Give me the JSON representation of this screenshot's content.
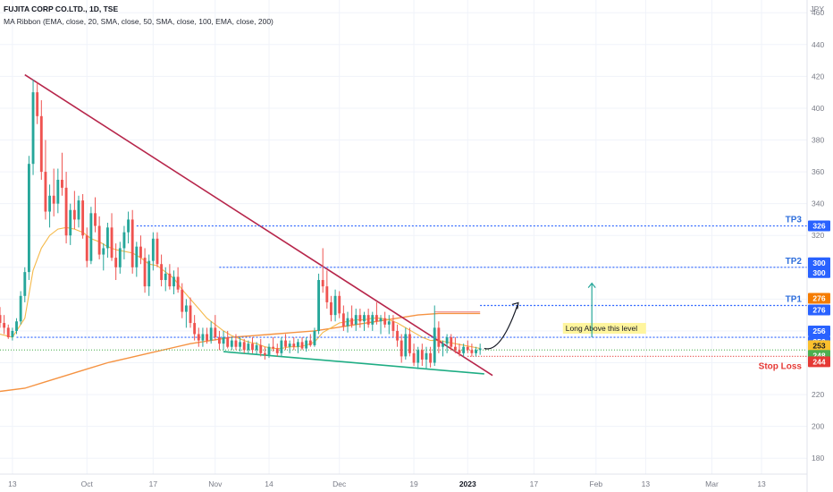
{
  "header": {
    "title": "FUJITA CORP CO.LTD., 1D, TSE",
    "indicator": "MA Ribbon (EMA, close, 20, SMA, close, 50, SMA, close, 100, EMA, close, 200)",
    "currency": "JPY"
  },
  "chart_data": {
    "type": "candlestick",
    "y_axis": {
      "ticks": [
        180,
        200,
        220,
        240,
        260,
        280,
        300,
        320,
        340,
        360,
        380,
        400,
        420,
        440,
        460
      ],
      "range": [
        170,
        468
      ]
    },
    "x_axis": {
      "ticks": [
        {
          "label": "13",
          "day": -18
        },
        {
          "label": "Oct",
          "day": 0
        },
        {
          "label": "17",
          "day": 16
        },
        {
          "label": "Nov",
          "day": 31
        },
        {
          "label": "14",
          "day": 44
        },
        {
          "label": "Dec",
          "day": 61
        },
        {
          "label": "19",
          "day": 79
        },
        {
          "label": "2023",
          "day": 92
        },
        {
          "label": "17",
          "day": 108
        },
        {
          "label": "Feb",
          "day": 123
        },
        {
          "label": "13",
          "day": 135
        },
        {
          "label": "Mar",
          "day": 151
        },
        {
          "label": "13",
          "day": 163
        }
      ],
      "range": [
        -21,
        174
      ]
    },
    "candles": [
      [
        -21,
        270,
        275,
        262,
        265
      ],
      [
        -20,
        265,
        270,
        258,
        262
      ],
      [
        -19,
        262,
        264,
        255,
        256
      ],
      [
        -18,
        256,
        262,
        254,
        260
      ],
      [
        -17,
        260,
        268,
        258,
        266
      ],
      [
        -16,
        266,
        285,
        264,
        282
      ],
      [
        -15,
        282,
        300,
        278,
        297
      ],
      [
        -14,
        297,
        370,
        292,
        365
      ],
      [
        -13,
        365,
        418,
        358,
        410
      ],
      [
        -12,
        410,
        416,
        390,
        395
      ],
      [
        -11,
        395,
        405,
        355,
        360
      ],
      [
        -10,
        360,
        380,
        330,
        335
      ],
      [
        -9,
        335,
        352,
        325,
        345
      ],
      [
        -8,
        345,
        362,
        332,
        340
      ],
      [
        -7,
        340,
        362,
        334,
        355
      ],
      [
        -6,
        355,
        372,
        345,
        350
      ],
      [
        -5,
        350,
        360,
        315,
        320
      ],
      [
        -4,
        320,
        340,
        314,
        336
      ],
      [
        -3,
        336,
        348,
        324,
        330
      ],
      [
        -2,
        330,
        345,
        325,
        342
      ],
      [
        -1,
        342,
        346,
        318,
        320
      ],
      [
        0,
        320,
        325,
        300,
        304
      ],
      [
        1,
        304,
        338,
        302,
        334
      ],
      [
        2,
        334,
        344,
        322,
        326
      ],
      [
        3,
        326,
        332,
        305,
        308
      ],
      [
        4,
        308,
        315,
        298,
        312
      ],
      [
        5,
        312,
        328,
        306,
        325
      ],
      [
        6,
        325,
        334,
        304,
        306
      ],
      [
        7,
        306,
        315,
        292,
        300
      ],
      [
        8,
        300,
        316,
        296,
        312
      ],
      [
        9,
        312,
        326,
        305,
        322
      ],
      [
        10,
        322,
        335,
        315,
        330
      ],
      [
        11,
        330,
        336,
        296,
        300
      ],
      [
        12,
        300,
        316,
        294,
        313
      ],
      [
        13,
        313,
        320,
        302,
        306
      ],
      [
        14,
        306,
        312,
        284,
        288
      ],
      [
        15,
        288,
        308,
        282,
        304
      ],
      [
        16,
        304,
        322,
        298,
        318
      ],
      [
        17,
        318,
        322,
        300,
        302
      ],
      [
        18,
        302,
        308,
        288,
        292
      ],
      [
        19,
        292,
        300,
        285,
        296
      ],
      [
        20,
        296,
        302,
        286,
        288
      ],
      [
        21,
        288,
        298,
        283,
        294
      ],
      [
        22,
        294,
        300,
        284,
        286
      ],
      [
        23,
        286,
        290,
        268,
        272
      ],
      [
        24,
        272,
        280,
        262,
        276
      ],
      [
        25,
        276,
        281,
        262,
        265
      ],
      [
        26,
        265,
        270,
        254,
        258
      ],
      [
        27,
        258,
        262,
        250,
        254
      ],
      [
        28,
        254,
        262,
        250,
        258
      ],
      [
        29,
        258,
        262,
        252,
        254
      ],
      [
        30,
        254,
        266,
        252,
        262
      ],
      [
        31,
        262,
        270,
        254,
        256
      ],
      [
        32,
        256,
        260,
        248,
        252
      ],
      [
        33,
        252,
        260,
        248,
        256
      ],
      [
        34,
        256,
        260,
        249,
        250
      ],
      [
        35,
        250,
        256,
        248,
        254
      ],
      [
        36,
        254,
        258,
        248,
        250
      ],
      [
        37,
        250,
        256,
        247,
        253
      ],
      [
        38,
        253,
        255,
        246,
        248
      ],
      [
        39,
        248,
        254,
        246,
        252
      ],
      [
        40,
        252,
        256,
        246,
        248
      ],
      [
        41,
        248,
        253,
        245,
        251
      ],
      [
        42,
        251,
        255,
        244,
        246
      ],
      [
        43,
        246,
        250,
        242,
        245
      ],
      [
        44,
        245,
        252,
        243,
        250
      ],
      [
        45,
        250,
        256,
        247,
        249
      ],
      [
        46,
        249,
        252,
        244,
        246
      ],
      [
        47,
        246,
        256,
        244,
        254
      ],
      [
        48,
        254,
        258,
        248,
        250
      ],
      [
        49,
        250,
        254,
        246,
        252
      ],
      [
        50,
        252,
        256,
        248,
        250
      ],
      [
        51,
        250,
        255,
        246,
        253
      ],
      [
        52,
        253,
        256,
        248,
        249
      ],
      [
        53,
        249,
        256,
        247,
        254
      ],
      [
        54,
        254,
        258,
        250,
        251
      ],
      [
        55,
        251,
        262,
        250,
        260
      ],
      [
        56,
        260,
        296,
        258,
        292
      ],
      [
        57,
        292,
        312,
        284,
        288
      ],
      [
        58,
        288,
        298,
        274,
        278
      ],
      [
        59,
        278,
        282,
        266,
        270
      ],
      [
        60,
        270,
        286,
        266,
        282
      ],
      [
        61,
        282,
        285,
        268,
        271
      ],
      [
        62,
        271,
        276,
        260,
        263
      ],
      [
        63,
        263,
        272,
        259,
        268
      ],
      [
        64,
        268,
        276,
        262,
        264
      ],
      [
        65,
        264,
        274,
        260,
        270
      ],
      [
        66,
        270,
        274,
        262,
        266
      ],
      [
        67,
        266,
        272,
        260,
        270
      ],
      [
        68,
        270,
        274,
        262,
        264
      ],
      [
        69,
        264,
        272,
        260,
        270
      ],
      [
        70,
        270,
        278,
        264,
        266
      ],
      [
        71,
        266,
        270,
        258,
        268
      ],
      [
        72,
        268,
        272,
        262,
        264
      ],
      [
        73,
        264,
        270,
        258,
        266
      ],
      [
        74,
        266,
        270,
        256,
        260
      ],
      [
        75,
        260,
        264,
        250,
        254
      ],
      [
        76,
        254,
        258,
        240,
        244
      ],
      [
        77,
        244,
        262,
        242,
        258
      ],
      [
        78,
        258,
        262,
        244,
        246
      ],
      [
        79,
        246,
        252,
        238,
        240
      ],
      [
        80,
        240,
        250,
        236,
        248
      ],
      [
        81,
        248,
        252,
        238,
        242
      ],
      [
        82,
        242,
        250,
        236,
        246
      ],
      [
        83,
        246,
        250,
        237,
        240
      ],
      [
        84,
        240,
        276,
        238,
        262
      ],
      [
        85,
        262,
        266,
        246,
        250
      ],
      [
        86,
        250,
        254,
        244,
        252
      ],
      [
        87,
        252,
        258,
        246,
        256
      ],
      [
        88,
        256,
        258,
        248,
        250
      ],
      [
        89,
        250,
        256,
        246,
        248
      ],
      [
        90,
        248,
        252,
        244,
        246
      ],
      [
        91,
        246,
        252,
        244,
        250
      ],
      [
        92,
        250,
        254,
        246,
        248
      ],
      [
        93,
        248,
        252,
        244,
        246
      ],
      [
        94,
        246,
        250,
        244,
        248
      ],
      [
        95,
        248,
        252,
        245,
        249
      ]
    ],
    "ema20": [
      [
        -21,
        258
      ],
      [
        -18,
        256
      ],
      [
        -15,
        268
      ],
      [
        -13,
        298
      ],
      [
        -11,
        312
      ],
      [
        -9,
        320
      ],
      [
        -7,
        324
      ],
      [
        -5,
        325
      ],
      [
        -3,
        324
      ],
      [
        -1,
        322
      ],
      [
        1,
        318
      ],
      [
        3,
        316
      ],
      [
        5,
        313
      ],
      [
        7,
        311
      ],
      [
        9,
        310
      ],
      [
        11,
        309
      ],
      [
        13,
        306
      ],
      [
        15,
        302
      ],
      [
        17,
        301
      ],
      [
        19,
        297
      ],
      [
        21,
        293
      ],
      [
        23,
        286
      ],
      [
        25,
        280
      ],
      [
        27,
        274
      ],
      [
        29,
        268
      ],
      [
        31,
        264
      ],
      [
        33,
        260
      ],
      [
        35,
        257
      ],
      [
        37,
        255
      ],
      [
        39,
        253
      ],
      [
        41,
        252
      ],
      [
        43,
        250
      ],
      [
        45,
        249
      ],
      [
        47,
        249
      ],
      [
        49,
        250
      ],
      [
        51,
        250
      ],
      [
        53,
        251
      ],
      [
        55,
        253
      ],
      [
        57,
        259
      ],
      [
        59,
        262
      ],
      [
        61,
        265
      ],
      [
        63,
        266
      ],
      [
        65,
        267
      ],
      [
        67,
        267
      ],
      [
        69,
        268
      ],
      [
        71,
        268
      ],
      [
        73,
        267
      ],
      [
        75,
        265
      ],
      [
        77,
        262
      ],
      [
        79,
        259
      ],
      [
        81,
        256
      ],
      [
        83,
        254
      ],
      [
        85,
        254
      ],
      [
        87,
        253
      ],
      [
        89,
        252
      ],
      [
        91,
        251
      ],
      [
        93,
        250
      ],
      [
        95,
        249
      ]
    ],
    "sma200": [
      [
        -21,
        222
      ],
      [
        -15,
        224
      ],
      [
        -10,
        228
      ],
      [
        -5,
        232
      ],
      [
        0,
        236
      ],
      [
        5,
        240
      ],
      [
        10,
        243
      ],
      [
        15,
        246
      ],
      [
        20,
        249
      ],
      [
        25,
        252
      ],
      [
        30,
        254
      ],
      [
        35,
        256
      ],
      [
        40,
        257
      ],
      [
        45,
        258
      ],
      [
        50,
        259
      ],
      [
        55,
        260
      ],
      [
        60,
        262
      ],
      [
        65,
        264
      ],
      [
        70,
        266
      ],
      [
        75,
        268
      ],
      [
        80,
        270
      ],
      [
        85,
        271
      ],
      [
        90,
        271
      ],
      [
        95,
        271
      ]
    ],
    "trendlines": {
      "resistance": {
        "from": [
          -15,
          421
        ],
        "to": [
          98,
          232
        ]
      },
      "support": {
        "from": [
          33,
          247
        ],
        "to": [
          96,
          233
        ]
      },
      "red_level": {
        "from": [
          84,
          272
        ],
        "to": [
          95,
          272
        ]
      }
    },
    "levels": {
      "tp3": {
        "label": "TP3",
        "price": 326,
        "value_text": "326"
      },
      "tp2": {
        "label": "TP2",
        "price": 300,
        "value_text": "300"
      },
      "tp2b": {
        "price": 300,
        "value_text": "300"
      },
      "tp1": {
        "label": "TP1",
        "price": 276,
        "value_text": "276"
      },
      "tp1_orange": {
        "price": 276,
        "value_text": "276"
      },
      "entry1": {
        "price": 256,
        "value_text": "256"
      },
      "entry2": {
        "price": 256,
        "value_text": "256"
      },
      "last_price": {
        "price": 253,
        "value_text": "253"
      },
      "green_dotted": {
        "price": 248,
        "value_text": "248"
      },
      "stop": {
        "label": "Stop Loss",
        "price": 244,
        "value_text": "244"
      }
    },
    "annotations": {
      "entry_label": "Long Above this level",
      "target_arrow": {
        "day": 122,
        "from": 256,
        "to": 290
      }
    },
    "colors": {
      "up": "#26a69a",
      "down": "#ef5350",
      "ema20": "#f5b94a",
      "sma200": "#f59342",
      "resistance": "#b7264b",
      "support": "#1fad84",
      "tp_line": "#2962ff",
      "tp_label": "#2f6fdc",
      "stop": "#e53935",
      "orange_badge": "#f57c00",
      "yellow_badge": "#fbc02d",
      "green_badge": "#4caf50",
      "entry_box": "#fff59d"
    }
  }
}
